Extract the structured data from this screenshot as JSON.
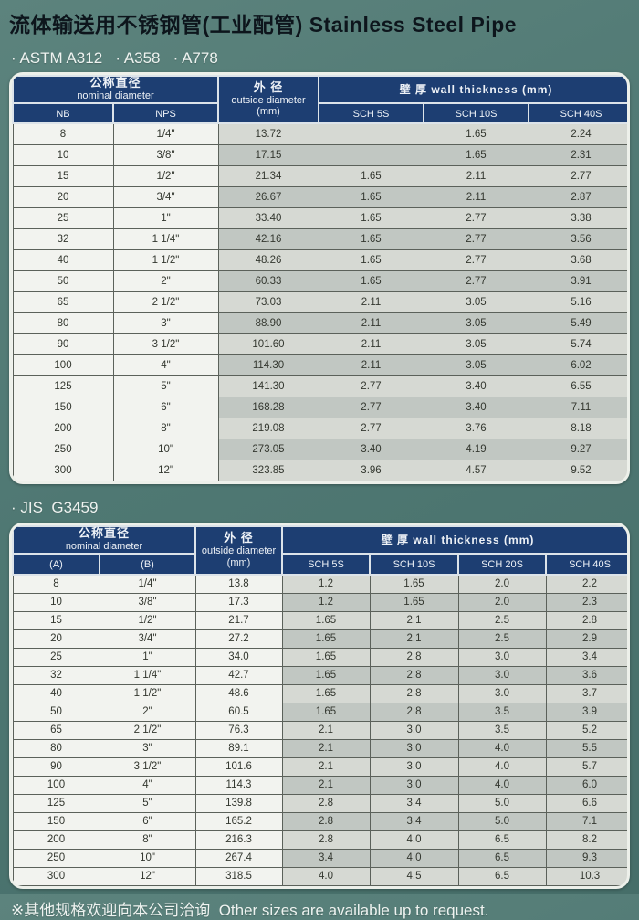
{
  "page": {
    "title": "流体输送用不锈钢管(工业配管) Stainless Steel Pipe"
  },
  "colors": {
    "background_teal": "#4f7873",
    "header_navy": "#1d3e72",
    "header_text": "#eef2f7",
    "cell_white": "#f2f3ef",
    "stripe_light": "#d6d9d3",
    "stripe_dark": "#c1c7c2",
    "title_text": "#0d151c",
    "light_text": "#eef3f0"
  },
  "tables": [
    {
      "standards_label": "· ASTM A312   · A358   · A778",
      "header": {
        "nominal_zh": "公称直径",
        "nominal_en": "nominal diameter",
        "od_zh": "外 径",
        "od_en": "outside diameter",
        "od_unit": "(mm)",
        "wall_label": "壁 厚 wall thickness  (mm)",
        "sub": [
          "NB",
          "NPS"
        ],
        "sch": [
          "SCH 5S",
          "SCH 10S",
          "SCH 40S"
        ]
      },
      "rows": [
        [
          "8",
          "1/4\"",
          "13.72",
          "",
          "1.65",
          "2.24"
        ],
        [
          "10",
          "3/8\"",
          "17.15",
          "",
          "1.65",
          "2.31"
        ],
        [
          "15",
          "1/2\"",
          "21.34",
          "1.65",
          "2.11",
          "2.77"
        ],
        [
          "20",
          "3/4\"",
          "26.67",
          "1.65",
          "2.11",
          "2.87"
        ],
        [
          "25",
          "1\"",
          "33.40",
          "1.65",
          "2.77",
          "3.38"
        ],
        [
          "32",
          "1 1/4\"",
          "42.16",
          "1.65",
          "2.77",
          "3.56"
        ],
        [
          "40",
          "1 1/2\"",
          "48.26",
          "1.65",
          "2.77",
          "3.68"
        ],
        [
          "50",
          "2\"",
          "60.33",
          "1.65",
          "2.77",
          "3.91"
        ],
        [
          "65",
          "2 1/2\"",
          "73.03",
          "2.11",
          "3.05",
          "5.16"
        ],
        [
          "80",
          "3\"",
          "88.90",
          "2.11",
          "3.05",
          "5.49"
        ],
        [
          "90",
          "3 1/2\"",
          "101.60",
          "2.11",
          "3.05",
          "5.74"
        ],
        [
          "100",
          "4\"",
          "114.30",
          "2.11",
          "3.05",
          "6.02"
        ],
        [
          "125",
          "5\"",
          "141.30",
          "2.77",
          "3.40",
          "6.55"
        ],
        [
          "150",
          "6\"",
          "168.28",
          "2.77",
          "3.40",
          "7.11"
        ],
        [
          "200",
          "8\"",
          "219.08",
          "2.77",
          "3.76",
          "8.18"
        ],
        [
          "250",
          "10\"",
          "273.05",
          "3.40",
          "4.19",
          "9.27"
        ],
        [
          "300",
          "12\"",
          "323.85",
          "3.96",
          "4.57",
          "9.52"
        ]
      ]
    },
    {
      "standards_label": "· JIS  G3459",
      "header": {
        "nominal_zh": "公称直径",
        "nominal_en": "nominal diameter",
        "od_zh": "外 径",
        "od_en": "outside diameter",
        "od_unit": "(mm)",
        "wall_label": "壁 厚 wall thickness  (mm)",
        "sub": [
          "(A)",
          "(B)"
        ],
        "sch": [
          "SCH 5S",
          "SCH 10S",
          "SCH 20S",
          "SCH 40S"
        ]
      },
      "rows": [
        [
          "8",
          "1/4\"",
          "13.8",
          "1.2",
          "1.65",
          "2.0",
          "2.2"
        ],
        [
          "10",
          "3/8\"",
          "17.3",
          "1.2",
          "1.65",
          "2.0",
          "2.3"
        ],
        [
          "15",
          "1/2\"",
          "21.7",
          "1.65",
          "2.1",
          "2.5",
          "2.8"
        ],
        [
          "20",
          "3/4\"",
          "27.2",
          "1.65",
          "2.1",
          "2.5",
          "2.9"
        ],
        [
          "25",
          "1\"",
          "34.0",
          "1.65",
          "2.8",
          "3.0",
          "3.4"
        ],
        [
          "32",
          "1 1/4\"",
          "42.7",
          "1.65",
          "2.8",
          "3.0",
          "3.6"
        ],
        [
          "40",
          "1 1/2\"",
          "48.6",
          "1.65",
          "2.8",
          "3.0",
          "3.7"
        ],
        [
          "50",
          "2\"",
          "60.5",
          "1.65",
          "2.8",
          "3.5",
          "3.9"
        ],
        [
          "65",
          "2 1/2\"",
          "76.3",
          "2.1",
          "3.0",
          "3.5",
          "5.2"
        ],
        [
          "80",
          "3\"",
          "89.1",
          "2.1",
          "3.0",
          "4.0",
          "5.5"
        ],
        [
          "90",
          "3 1/2\"",
          "101.6",
          "2.1",
          "3.0",
          "4.0",
          "5.7"
        ],
        [
          "100",
          "4\"",
          "114.3",
          "2.1",
          "3.0",
          "4.0",
          "6.0"
        ],
        [
          "125",
          "5\"",
          "139.8",
          "2.8",
          "3.4",
          "5.0",
          "6.6"
        ],
        [
          "150",
          "6\"",
          "165.2",
          "2.8",
          "3.4",
          "5.0",
          "7.1"
        ],
        [
          "200",
          "8\"",
          "216.3",
          "2.8",
          "4.0",
          "6.5",
          "8.2"
        ],
        [
          "250",
          "10\"",
          "267.4",
          "3.4",
          "4.0",
          "6.5",
          "9.3"
        ],
        [
          "300",
          "12\"",
          "318.5",
          "4.0",
          "4.5",
          "6.5",
          "10.3"
        ]
      ]
    }
  ],
  "footer": {
    "note": "※其他规格欢迎向本公司洽询  Other sizes are available up to request."
  }
}
